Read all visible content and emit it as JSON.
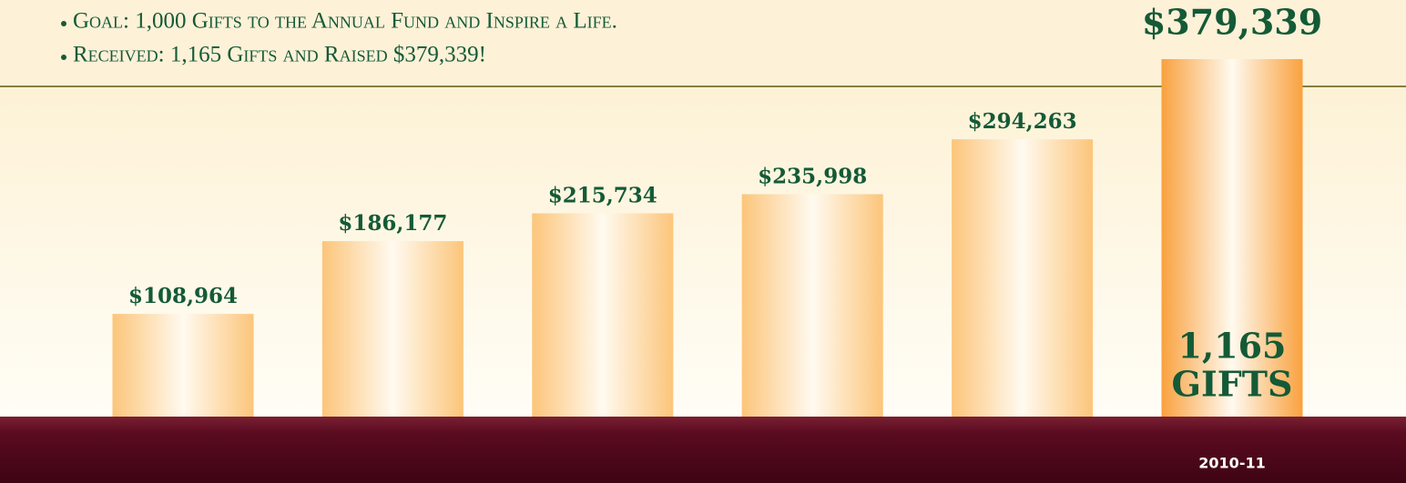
{
  "chart_data": {
    "type": "bar",
    "notes": [
      "Goal: 1,000 Gifts to the Annual Fund and Inspire a Life.",
      "Received: 1,165 Gifts and Raised $379,339!"
    ],
    "categories": [
      null,
      null,
      null,
      null,
      null,
      "2010-11"
    ],
    "values": [
      108964,
      186177,
      215734,
      235998,
      294263,
      379339
    ],
    "value_labels": [
      "$108,964",
      "$186,177",
      "$215,734",
      "$235,998",
      "$294,263",
      "$379,339"
    ],
    "annotation": [
      "1,165",
      "GIFTS"
    ],
    "color": "#fcc57a",
    "highlight_color": "#f9a13e"
  }
}
